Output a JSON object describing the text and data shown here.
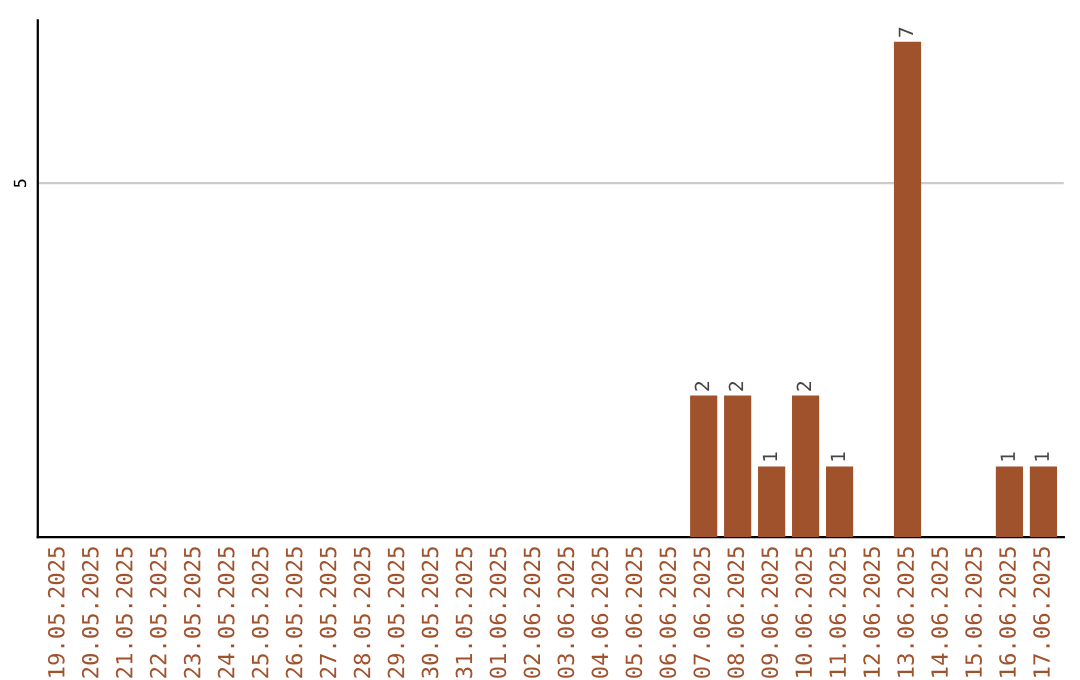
{
  "chart_data": {
    "type": "bar",
    "categories": [
      "19.05.2025",
      "20.05.2025",
      "21.05.2025",
      "22.05.2025",
      "23.05.2025",
      "24.05.2025",
      "25.05.2025",
      "26.05.2025",
      "27.05.2025",
      "28.05.2025",
      "29.05.2025",
      "30.05.2025",
      "31.05.2025",
      "01.06.2025",
      "02.06.2025",
      "03.06.2025",
      "04.06.2025",
      "05.06.2025",
      "06.06.2025",
      "07.06.2025",
      "08.06.2025",
      "09.06.2025",
      "10.06.2025",
      "11.06.2025",
      "12.06.2025",
      "13.06.2025",
      "14.06.2025",
      "15.06.2025",
      "16.06.2025",
      "17.06.2025"
    ],
    "values": [
      null,
      null,
      null,
      null,
      null,
      null,
      null,
      null,
      null,
      null,
      null,
      null,
      null,
      null,
      null,
      null,
      null,
      null,
      null,
      2,
      2,
      1,
      2,
      1,
      null,
      7,
      null,
      null,
      1,
      1
    ],
    "data_labels": true,
    "color": "#a0522d",
    "ylim": [
      0,
      7.3
    ],
    "yticks": [
      5
    ],
    "grid": "y"
  }
}
